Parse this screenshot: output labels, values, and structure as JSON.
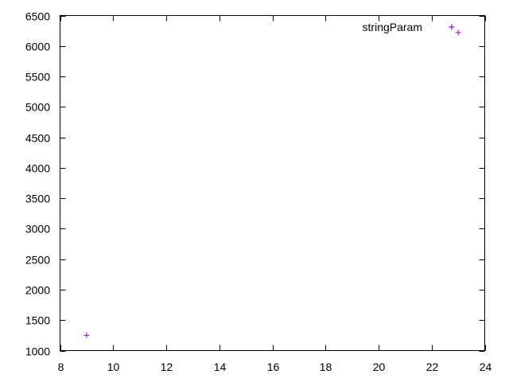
{
  "chart_data": {
    "type": "scatter",
    "title": "",
    "xlabel": "",
    "ylabel": "",
    "xlim": [
      8,
      24
    ],
    "ylim": [
      1000,
      6500
    ],
    "xticks": [
      8,
      10,
      12,
      14,
      16,
      18,
      20,
      22,
      24
    ],
    "yticks": [
      1000,
      1500,
      2000,
      2500,
      3000,
      3500,
      4000,
      4500,
      5000,
      5500,
      6000,
      6500
    ],
    "grid": false,
    "legend": "top-right",
    "series": [
      {
        "name": "stringParam",
        "color": "#9400d3",
        "marker": "plus",
        "points": [
          {
            "x": 9,
            "y": 1250
          },
          {
            "x": 22.75,
            "y": 6310
          },
          {
            "x": 23,
            "y": 6220
          }
        ]
      }
    ]
  }
}
